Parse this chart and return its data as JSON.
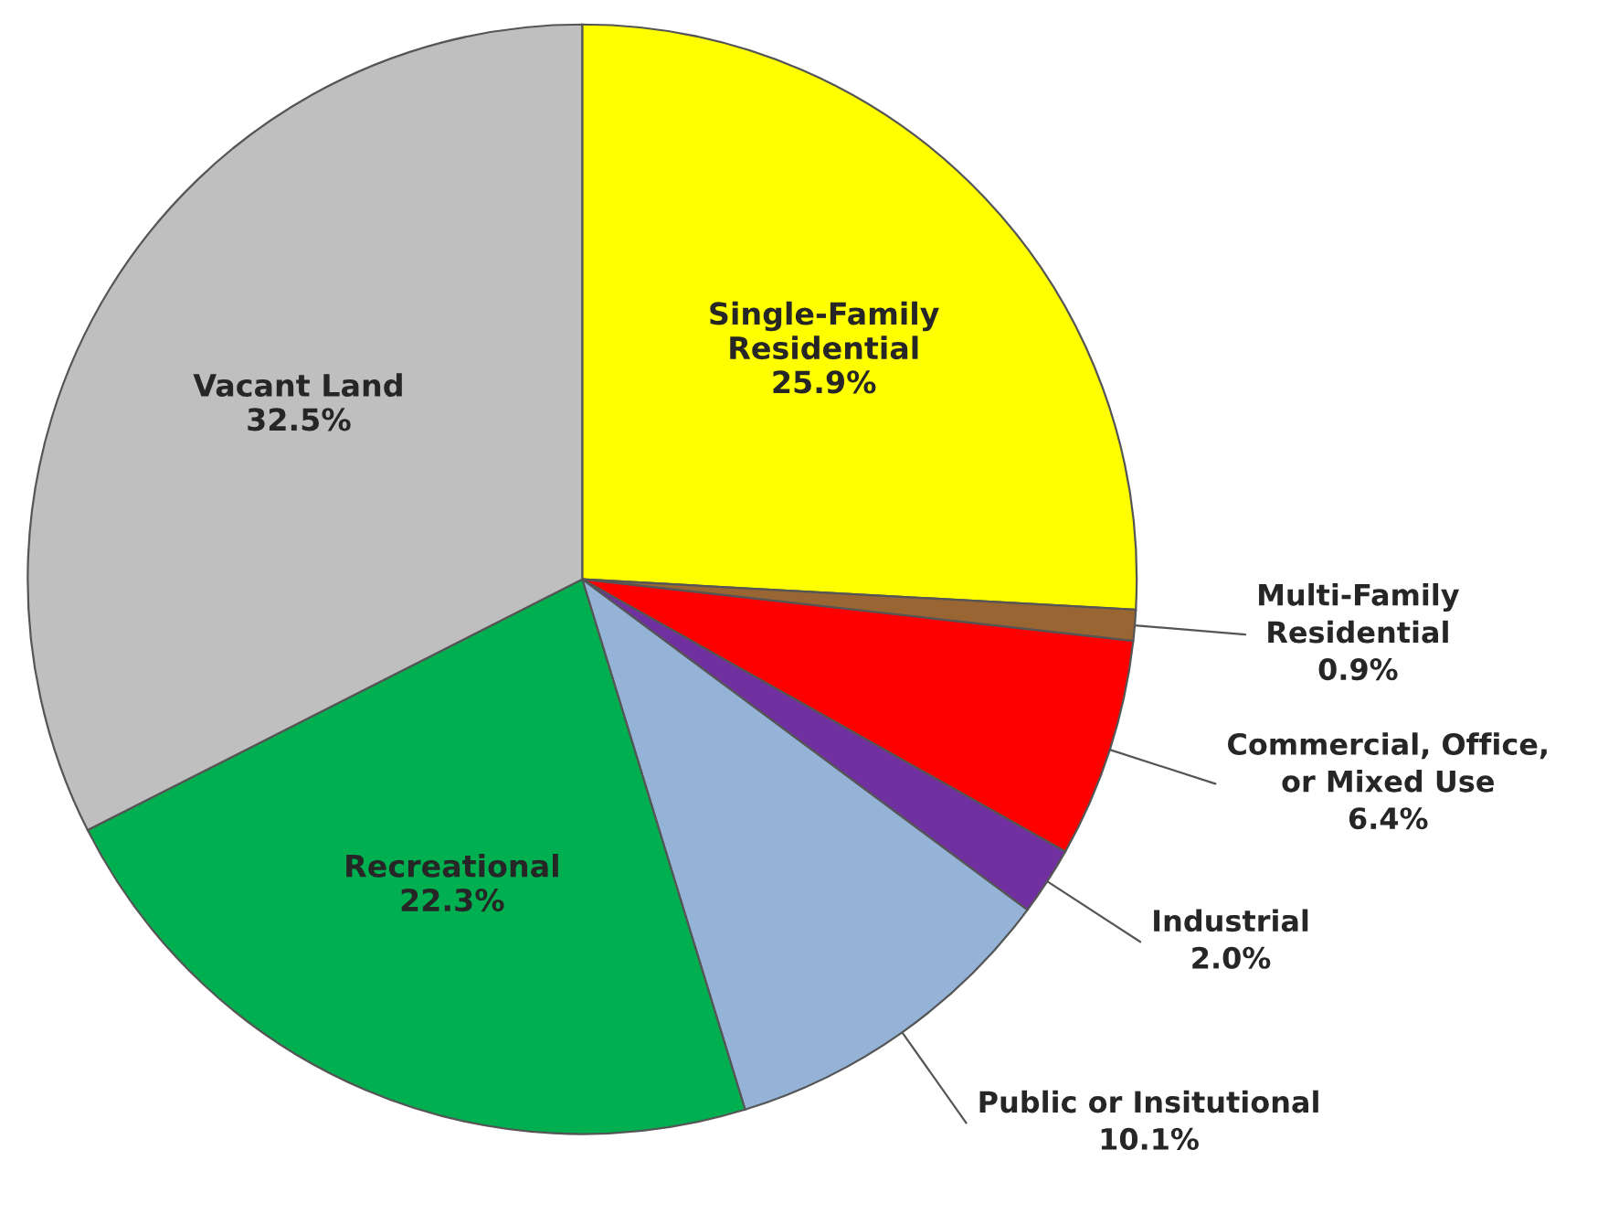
{
  "chart_data": {
    "type": "pie",
    "categories": [
      "Single-Family\nResidential",
      "Multi-Family\nResidential",
      "Commercial, Office,\nor Mixed Use",
      "Industrial",
      "Public or Insitutional",
      "Recreational",
      "Vacant Land"
    ],
    "values": [
      25.9,
      0.9,
      6.4,
      2.0,
      10.1,
      22.3,
      32.5
    ],
    "value_labels": [
      "25.9%",
      "0.9%",
      "6.4%",
      "2.0%",
      "10.1%",
      "22.3%",
      "32.5%"
    ],
    "colors": [
      "#ffff00",
      "#996633",
      "#ff0000",
      "#7030a0",
      "#95b3d7",
      "#00b050",
      "#bfbfbf"
    ]
  }
}
